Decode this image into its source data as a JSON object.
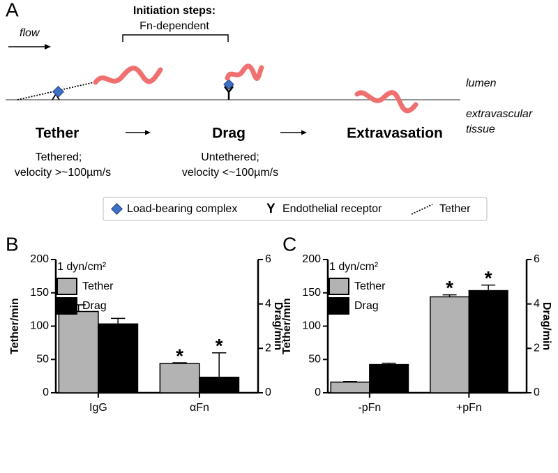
{
  "diagram": {
    "panel_label": "A",
    "flow_label": "flow",
    "initiation_title": "Initiation steps:",
    "initiation_subtitle": "Fn-dependent",
    "lumen_label": "lumen",
    "tissue_label": [
      "extravascular",
      "tissue"
    ],
    "steps": [
      {
        "name": "Tether",
        "description": [
          "Tethered;",
          "velocity >~100µm/s"
        ]
      },
      {
        "name": "Drag",
        "description": [
          "Untethered;",
          "velocity <~100µm/s"
        ]
      },
      {
        "name": "Extravasation"
      }
    ],
    "legend": {
      "complex": "Load-bearing complex",
      "receptor_symbol": "Y",
      "receptor": "Endothelial receptor",
      "tether": "Tether"
    }
  },
  "chart_data": [
    {
      "type": "bar",
      "panel_label": "B",
      "legend_title": "1 dyn/cm²",
      "ylabel": "Tether/min",
      "y2label": "Drag/min",
      "categories": [
        "IgG",
        "αFn"
      ],
      "series": [
        {
          "name": "Tether",
          "color": "#b3b3b3",
          "values": [
            122,
            44
          ],
          "errors": [
            10,
            1
          ],
          "marks": [
            null,
            "*"
          ]
        },
        {
          "name": "Drag",
          "color": "#000000",
          "axis": "y2",
          "values": [
            3.1,
            0.7
          ],
          "errors": [
            0.25,
            1.1
          ],
          "marks": [
            null,
            "*"
          ]
        }
      ],
      "ylim": [
        0,
        200
      ],
      "yticks": [
        0,
        50,
        100,
        150,
        200
      ],
      "y2lim": [
        0,
        6
      ],
      "y2ticks": [
        0,
        2,
        4,
        6
      ]
    },
    {
      "type": "bar",
      "panel_label": "C",
      "legend_title": "1 dyn/cm²",
      "ylabel": "Tether/min",
      "y2label": "Drag/min",
      "categories": [
        "-pFn",
        "+pFn"
      ],
      "series": [
        {
          "name": "Tether",
          "color": "#b3b3b3",
          "values": [
            16,
            144
          ],
          "errors": [
            1,
            3
          ],
          "marks": [
            null,
            "*"
          ]
        },
        {
          "name": "Drag",
          "color": "#000000",
          "axis": "y2",
          "values": [
            1.27,
            4.6
          ],
          "errors": [
            0.06,
            0.25
          ],
          "marks": [
            null,
            "*"
          ]
        }
      ],
      "ylim": [
        0,
        200
      ],
      "yticks": [
        0,
        50,
        100,
        150,
        200
      ],
      "y2lim": [
        0,
        6
      ],
      "y2ticks": [
        0,
        2,
        4,
        6
      ]
    }
  ]
}
